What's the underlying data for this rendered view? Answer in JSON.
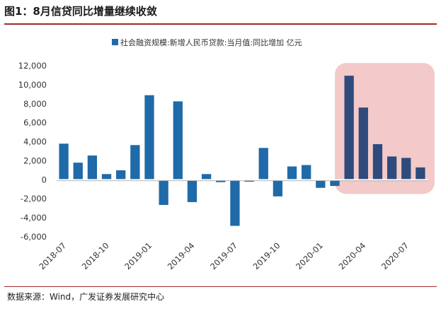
{
  "figure": {
    "title": "图1：8月信贷同比增量继续收敛",
    "source": "数据来源：Wind，广发证券发展研究中心"
  },
  "colors": {
    "bar": "#1f6aa8",
    "bar_highlight": "#2e4b7c",
    "highlight_box": "#f3c9c9",
    "rule": "#a4282c",
    "axis_text": "#333333"
  },
  "chart_data": {
    "type": "bar",
    "title": "",
    "legend": [
      "社会融资规模:新增人民币贷款:当月值:同比增加 亿元"
    ],
    "legend_position": "top-center",
    "categories": [
      "2018-07",
      "2018-08",
      "2018-09",
      "2018-10",
      "2018-11",
      "2018-12",
      "2019-01",
      "2019-02",
      "2019-03",
      "2019-04",
      "2019-05",
      "2019-06",
      "2019-07",
      "2019-08",
      "2019-09",
      "2019-10",
      "2019-11",
      "2019-12",
      "2020-01",
      "2020-02",
      "2020-03",
      "2020-04",
      "2020-05",
      "2020-06",
      "2020-07",
      "2020-08"
    ],
    "values": [
      3800,
      1800,
      2550,
      600,
      1000,
      3650,
      8900,
      -2650,
      8250,
      -2350,
      600,
      -250,
      -4850,
      -200,
      3350,
      -1750,
      1400,
      1550,
      -850,
      -650,
      10950,
      7600,
      3750,
      2450,
      2300,
      1300
    ],
    "x_tick_labels": [
      "2018-07",
      "2018-10",
      "2019-01",
      "2019-04",
      "2019-07",
      "2019-10",
      "2020-01",
      "2020-04",
      "2020-07"
    ],
    "x_tick_label_categories": [
      "2018-07",
      "2018-10",
      "2019-01",
      "2019-04",
      "2019-07",
      "2019-10",
      "2020-01",
      "2020-04",
      "2020-07"
    ],
    "y_tick_labels": [
      "12,000",
      "10,000",
      "8,000",
      "6,000",
      "4,000",
      "2,000",
      "0",
      "-2,000",
      "-4,000",
      "-6,000"
    ],
    "y_tick_values": [
      12000,
      10000,
      8000,
      6000,
      4000,
      2000,
      0,
      -2000,
      -4000,
      -6000
    ],
    "ylim": [
      -6000,
      12000
    ],
    "xlabel": "",
    "ylabel": "",
    "grid": false,
    "highlight_range": [
      "2020-03",
      "2020-08"
    ]
  }
}
